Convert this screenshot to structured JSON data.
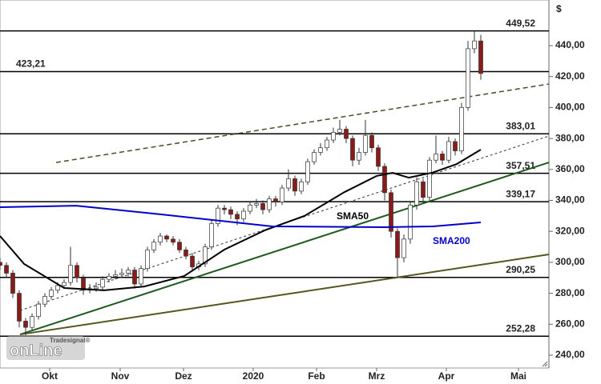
{
  "chart_data": {
    "type": "candlestick",
    "currency": "$",
    "xlim": [
      0,
      171.25
    ],
    "ylim": [
      231.73,
      469.46
    ],
    "xticks": [
      {
        "value": 15.5,
        "label": "Okt"
      },
      {
        "value": 37.5,
        "label": "Nov"
      },
      {
        "value": 57.25,
        "label": "Dez"
      },
      {
        "value": 79,
        "label": "2020"
      },
      {
        "value": 98.75,
        "label": "Feb"
      },
      {
        "value": 117.5,
        "label": "Mrz"
      },
      {
        "value": 139.25,
        "label": "Apr"
      },
      {
        "value": 161.75,
        "label": "Mai"
      }
    ],
    "yticks": [
      {
        "value": 240,
        "label": "240,00"
      },
      {
        "value": 260,
        "label": "260,00"
      },
      {
        "value": 280,
        "label": "280,00"
      },
      {
        "value": 300,
        "label": "300,00"
      },
      {
        "value": 320,
        "label": "320,00"
      },
      {
        "value": 340,
        "label": "340,00"
      },
      {
        "value": 360,
        "label": "360,00"
      },
      {
        "value": 380,
        "label": "380,00"
      },
      {
        "value": 400,
        "label": "400,00"
      },
      {
        "value": 420,
        "label": "420,00"
      },
      {
        "value": 440,
        "label": "440,00"
      }
    ],
    "x": [
      0,
      2,
      4,
      6,
      8,
      10,
      12,
      14,
      16,
      18,
      20,
      22,
      24,
      26,
      28,
      30,
      32,
      34,
      36,
      38,
      40,
      42,
      44,
      46,
      48,
      50,
      52,
      54,
      56,
      58,
      60,
      62,
      64,
      66,
      68,
      70,
      72,
      74,
      76,
      78,
      80,
      82,
      84,
      86,
      88,
      90,
      92,
      94,
      96,
      98,
      100,
      102,
      104,
      106,
      108,
      110,
      112,
      114,
      116,
      118,
      120,
      122,
      124,
      126,
      128,
      130,
      132,
      134,
      136,
      138,
      140,
      142,
      144,
      146,
      148,
      150
    ],
    "open": [
      300,
      298,
      293,
      280,
      262,
      258,
      265,
      273,
      278,
      282,
      285,
      287,
      298,
      290,
      282,
      283,
      284,
      289,
      291,
      292,
      293,
      295,
      286,
      296,
      308,
      313,
      317,
      315,
      313,
      308,
      304,
      297,
      299,
      310,
      325,
      335,
      334,
      331,
      328,
      333,
      337,
      338,
      334,
      341,
      339,
      348,
      354,
      346,
      352,
      365,
      371,
      374,
      379,
      384,
      386,
      380,
      366,
      371,
      382,
      374,
      362,
      345,
      320,
      303,
      315,
      337,
      352,
      342,
      366,
      370,
      366,
      378,
      372,
      400,
      438,
      443
    ],
    "high": [
      303,
      300,
      295,
      282,
      264,
      267,
      275,
      280,
      284,
      287,
      289,
      310,
      300,
      292,
      286,
      287,
      291,
      293,
      295,
      296,
      297,
      297,
      298,
      310,
      315,
      319,
      318,
      317,
      315,
      310,
      306,
      301,
      312,
      327,
      337,
      337,
      336,
      333,
      335,
      339,
      341,
      340,
      343,
      343,
      350,
      360,
      356,
      354,
      367,
      373,
      377,
      381,
      387,
      392,
      388,
      382,
      374,
      392,
      384,
      376,
      364,
      347,
      322,
      318,
      339,
      355,
      354,
      368,
      382,
      372,
      381,
      380,
      403,
      443,
      449.5,
      447
    ],
    "low": [
      295,
      290,
      277,
      258,
      253,
      256,
      263,
      271,
      276,
      280,
      283,
      285,
      287,
      279,
      280,
      281,
      282,
      287,
      289,
      290,
      291,
      283,
      284,
      294,
      306,
      311,
      313,
      311,
      306,
      302,
      295,
      295,
      297,
      308,
      323,
      331,
      328,
      324,
      326,
      331,
      335,
      331,
      332,
      336,
      337,
      346,
      343,
      344,
      350,
      363,
      369,
      372,
      377,
      382,
      377,
      362,
      363,
      369,
      371,
      359,
      340,
      316,
      290,
      300,
      312,
      334,
      339,
      340,
      364,
      363,
      364,
      369,
      370,
      398,
      435,
      418
    ],
    "close": [
      298,
      293,
      280,
      262,
      258,
      265,
      273,
      278,
      282,
      285,
      287,
      298,
      290,
      282,
      283,
      284,
      289,
      291,
      292,
      293,
      295,
      286,
      296,
      308,
      313,
      317,
      315,
      313,
      308,
      304,
      297,
      299,
      310,
      325,
      335,
      334,
      331,
      328,
      333,
      337,
      338,
      334,
      341,
      339,
      348,
      354,
      346,
      352,
      365,
      371,
      374,
      379,
      384,
      386,
      380,
      366,
      371,
      382,
      374,
      362,
      345,
      320,
      303,
      315,
      337,
      352,
      342,
      366,
      370,
      366,
      378,
      372,
      400,
      438,
      443,
      422
    ],
    "up_color": "#ffffff",
    "down_color": "#8b1a1a",
    "series": [
      {
        "name": "SMA50",
        "color": "#000000",
        "x": [
          0,
          7.5,
          20,
          32.5,
          45,
          57.5,
          70,
          82.5,
          95,
          107.5,
          117.5,
          122.5,
          127.5,
          135,
          142.5,
          150
        ],
        "values": [
          317,
          299,
          283.4,
          281.9,
          284.4,
          291.2,
          308.2,
          320.6,
          330,
          345.4,
          355.8,
          357.8,
          354.7,
          358,
          363.5,
          372.8
        ]
      },
      {
        "name": "SMA200",
        "color": "#0000cc",
        "x": [
          0,
          23.75,
          50,
          85,
          120,
          135,
          150
        ],
        "values": [
          335.6,
          336.6,
          331,
          323.2,
          322.7,
          323.2,
          325.8
        ]
      }
    ],
    "levels": [
      {
        "value": 449.52,
        "label": "449,52"
      },
      {
        "value": 423.21,
        "label": "423,21"
      },
      {
        "value": 383.01,
        "label": "383,01"
      },
      {
        "value": 357.51,
        "label": "357,51"
      },
      {
        "value": 339.17,
        "label": "339,17"
      },
      {
        "value": 290.25,
        "label": "290,25"
      },
      {
        "value": 252.28,
        "label": "252,28"
      }
    ],
    "trendlines": [
      {
        "x": [
          17.5,
          171.25
        ],
        "values": [
          364.5,
          415.2
        ],
        "color": "#4a4a2a",
        "dash": "6,4",
        "width": 1.5
      },
      {
        "x": [
          6.25,
          171.25
        ],
        "values": [
          268.9,
          381.6
        ],
        "color": "#333333",
        "dash": "3,3",
        "width": 1
      },
      {
        "x": [
          6.25,
          171.25
        ],
        "values": [
          253.4,
          364.5
        ],
        "color": "#1e5a1e",
        "dash": "",
        "width": 2
      },
      {
        "x": [
          6.25,
          171.25
        ],
        "values": [
          253.4,
          305.1
        ],
        "color": "#55551e",
        "dash": "",
        "width": 2
      }
    ],
    "logo": {
      "brand": "Tradesignal®",
      "name": "onLine"
    }
  }
}
